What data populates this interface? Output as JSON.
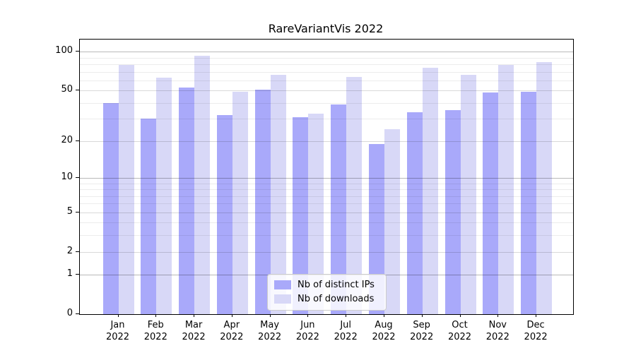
{
  "title": "RareVariantVis 2022",
  "chart_data": {
    "type": "bar",
    "title": "RareVariantVis 2022",
    "categories": [
      "Jan",
      "Feb",
      "Mar",
      "Apr",
      "May",
      "Jun",
      "Jul",
      "Aug",
      "Sep",
      "Oct",
      "Nov",
      "Dec"
    ],
    "year_label": "2022",
    "series": [
      {
        "name": "Nb of distinct IPs",
        "key": "distinct-ips",
        "color": "#a9a9fa",
        "values": [
          40,
          30,
          53,
          32,
          51,
          31,
          39,
          19,
          34,
          35,
          48,
          49
        ]
      },
      {
        "name": "Nb of downloads",
        "key": "downloads",
        "color": "#d8d8f7",
        "values": [
          79,
          63,
          93,
          49,
          66,
          33,
          64,
          25,
          75,
          66,
          79,
          83
        ]
      }
    ],
    "yscale": "log1p",
    "ylabel": "",
    "xlabel": "",
    "yticks": [
      0,
      1,
      2,
      5,
      10,
      20,
      50,
      100
    ],
    "minor_yticks": [
      3,
      4,
      6,
      7,
      8,
      9,
      30,
      40,
      60,
      70,
      80,
      90
    ],
    "decade_yticks": [
      1,
      10,
      100
    ],
    "ylim": [
      0,
      124
    ],
    "grid": "horizontal, major and minor",
    "legend_position": "lower center inside plot",
    "spine_color": "#000000"
  }
}
